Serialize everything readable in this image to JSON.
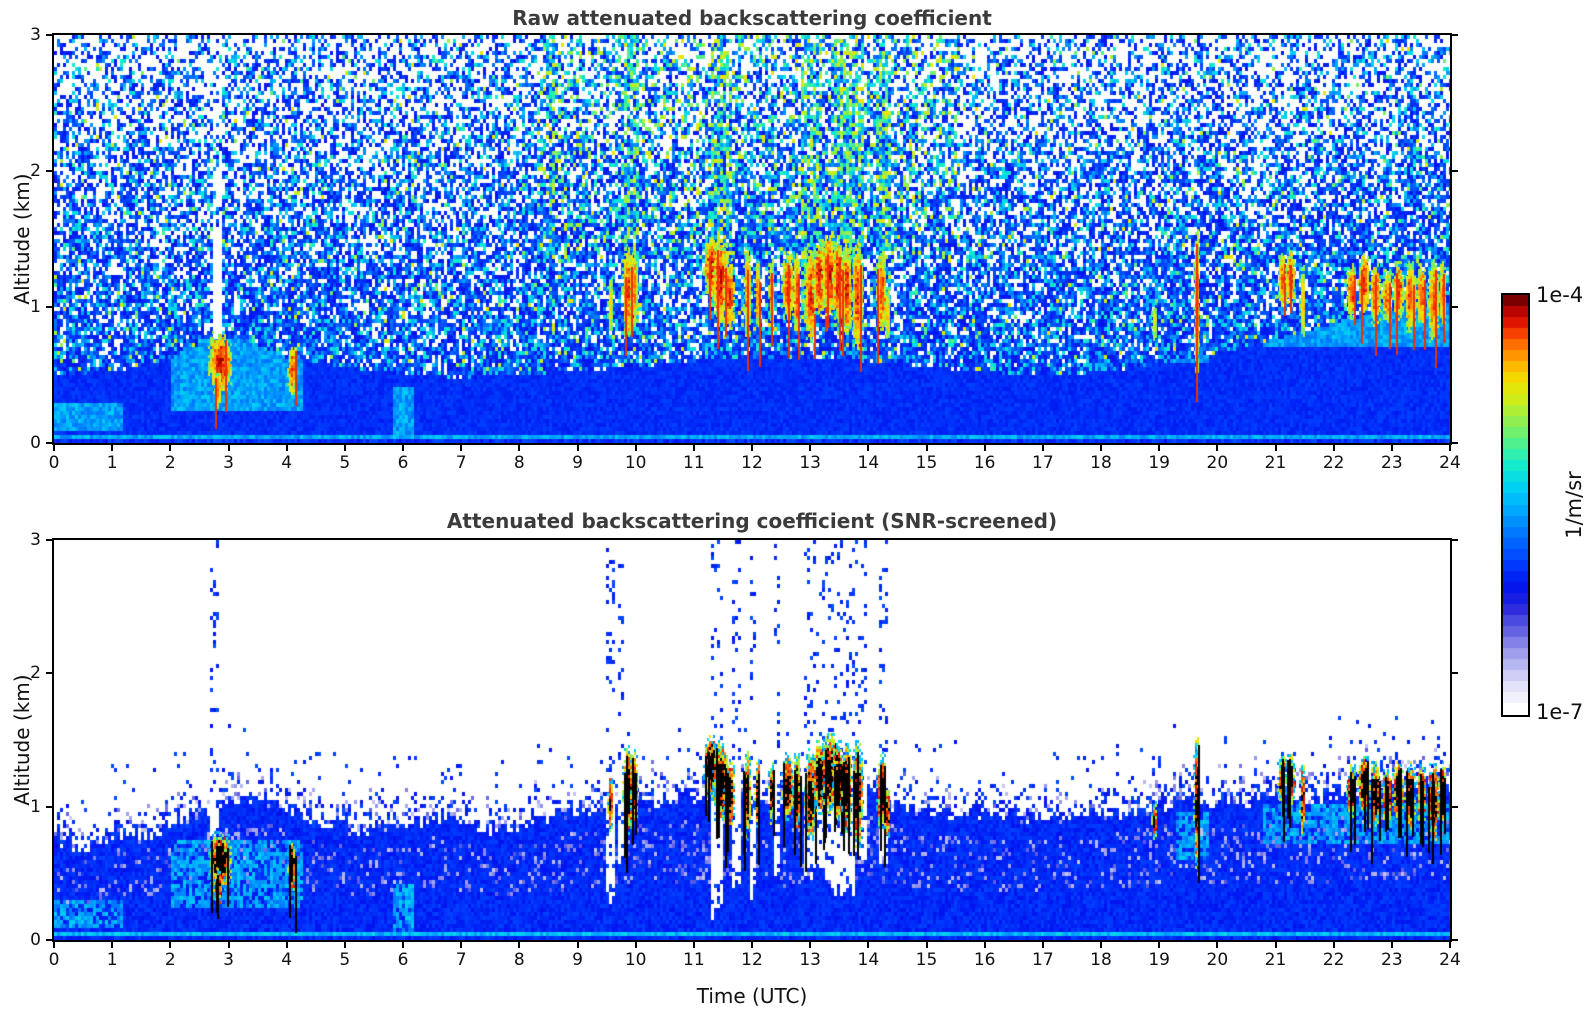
{
  "chart_data": {
    "type": "heatmap",
    "x_axis": {
      "label": "Time (UTC)",
      "range": [
        0,
        24
      ],
      "ticks": [
        0,
        1,
        2,
        3,
        4,
        5,
        6,
        7,
        8,
        9,
        10,
        11,
        12,
        13,
        14,
        15,
        16,
        17,
        18,
        19,
        20,
        21,
        22,
        23,
        24
      ]
    },
    "y_axis": {
      "label": "Altitude (km)",
      "range": [
        0,
        3
      ],
      "ticks": [
        0,
        1,
        2,
        3
      ]
    },
    "colorbar": {
      "units": "1/m/sr",
      "scale": "log",
      "min": 1e-07,
      "max": 0.0001,
      "min_label": "1e-7",
      "max_label": "1e-4",
      "stops": [
        [
          0.0,
          "#ffffff"
        ],
        [
          0.05,
          "#e6e6fa"
        ],
        [
          0.1,
          "#bdbdf2"
        ],
        [
          0.15,
          "#9090ea"
        ],
        [
          0.2,
          "#5c5ce2"
        ],
        [
          0.25,
          "#2626dc"
        ],
        [
          0.3,
          "#0013f0"
        ],
        [
          0.36,
          "#0040ff"
        ],
        [
          0.42,
          "#0070ff"
        ],
        [
          0.48,
          "#00a2ff"
        ],
        [
          0.54,
          "#00d2f2"
        ],
        [
          0.6,
          "#16eec8"
        ],
        [
          0.65,
          "#4cf08e"
        ],
        [
          0.7,
          "#8aee55"
        ],
        [
          0.75,
          "#c8ee1e"
        ],
        [
          0.8,
          "#f2e200"
        ],
        [
          0.84,
          "#ffb800"
        ],
        [
          0.88,
          "#ff8000"
        ],
        [
          0.92,
          "#f74100"
        ],
        [
          0.95,
          "#dd1100"
        ],
        [
          0.98,
          "#b00000"
        ],
        [
          1.0,
          "#7a0000"
        ]
      ]
    },
    "panels": [
      {
        "title": "Raw attenuated backscattering coefficient",
        "mode": "raw",
        "boundary_layer_top_km": [
          [
            0,
            0.5
          ],
          [
            1,
            0.52
          ],
          [
            2,
            0.62
          ],
          [
            2.6,
            0.75
          ],
          [
            3,
            0.78
          ],
          [
            3.5,
            0.72
          ],
          [
            4,
            0.63
          ],
          [
            5,
            0.56
          ],
          [
            6,
            0.5
          ],
          [
            7,
            0.48
          ],
          [
            8,
            0.5
          ],
          [
            9,
            0.53
          ],
          [
            10,
            0.56
          ],
          [
            11,
            0.6
          ],
          [
            12,
            0.63
          ],
          [
            13,
            0.62
          ],
          [
            14,
            0.6
          ],
          [
            15,
            0.56
          ],
          [
            16,
            0.52
          ],
          [
            17,
            0.5
          ],
          [
            18,
            0.52
          ],
          [
            19,
            0.58
          ],
          [
            20,
            0.66
          ],
          [
            21,
            0.76
          ],
          [
            22,
            0.88
          ],
          [
            23,
            0.98
          ],
          [
            24,
            1.02
          ]
        ],
        "white_columns": [
          [
            2.74,
            2.9,
            0.68,
            1.58
          ]
        ],
        "bright_columns": [
          [
            9.8,
            10.05
          ],
          [
            11.3,
            11.65
          ],
          [
            12.85,
            13.2
          ],
          [
            13.35,
            13.95
          ],
          [
            14.15,
            14.4
          ],
          [
            8.5,
            8.62
          ]
        ]
      },
      {
        "title": "Attenuated backscattering coefficient (SNR-screened)",
        "mode": "screened",
        "boundary_layer_top_km": [
          [
            0,
            0.72
          ],
          [
            0.5,
            0.68
          ],
          [
            1,
            0.8
          ],
          [
            1.5,
            0.78
          ],
          [
            2,
            0.84
          ],
          [
            2.5,
            0.92
          ],
          [
            3,
            1.04
          ],
          [
            3.5,
            1.05
          ],
          [
            4,
            1.0
          ],
          [
            4.5,
            0.9
          ],
          [
            5,
            0.85
          ],
          [
            5.5,
            0.8
          ],
          [
            6,
            0.86
          ],
          [
            6.5,
            0.92
          ],
          [
            7,
            0.88
          ],
          [
            7.5,
            0.82
          ],
          [
            8,
            0.86
          ],
          [
            8.5,
            0.9
          ],
          [
            9,
            0.96
          ],
          [
            9.5,
            1.0
          ],
          [
            10,
            1.03
          ],
          [
            10.5,
            1.0
          ],
          [
            11,
            1.06
          ],
          [
            11.5,
            1.1
          ],
          [
            12,
            1.05
          ],
          [
            12.5,
            1.0
          ],
          [
            13,
            1.05
          ],
          [
            13.5,
            1.1
          ],
          [
            14,
            1.1
          ],
          [
            14.5,
            1.0
          ],
          [
            15,
            0.95
          ],
          [
            16,
            0.9
          ],
          [
            17,
            0.9
          ],
          [
            18,
            0.92
          ],
          [
            19,
            1.0
          ],
          [
            19.5,
            1.06
          ],
          [
            20,
            1.0
          ],
          [
            21,
            1.08
          ],
          [
            21.5,
            1.04
          ],
          [
            22,
            1.1
          ],
          [
            22.5,
            1.14
          ],
          [
            23,
            1.15
          ],
          [
            24,
            1.16
          ]
        ],
        "screened_gaps": [
          [
            9.5,
            9.64,
            0.25
          ],
          [
            9.72,
            9.8,
            0.5
          ],
          [
            11.32,
            11.52,
            0.15
          ],
          [
            11.68,
            11.8,
            0.35
          ],
          [
            11.95,
            12.06,
            0.3
          ],
          [
            12.38,
            12.5,
            0.45
          ],
          [
            12.88,
            13.35,
            0.45
          ],
          [
            13.35,
            13.78,
            0.3
          ],
          [
            13.78,
            13.98,
            0.55
          ],
          [
            14.16,
            14.34,
            0.5
          ],
          [
            2.7,
            2.82,
            0.78
          ]
        ]
      }
    ],
    "clouds": [
      [
        2.85,
        0.6,
        0.2,
        0.22,
        1
      ],
      [
        2.8,
        0.4,
        0.07,
        0.14,
        0.8
      ],
      [
        4.08,
        0.55,
        0.07,
        0.2,
        0.9
      ],
      [
        9.55,
        1.02,
        0.05,
        0.22,
        0.65
      ],
      [
        9.85,
        1.12,
        0.08,
        0.34,
        0.95
      ],
      [
        9.97,
        1.15,
        0.06,
        0.28,
        0.85
      ],
      [
        11.3,
        1.3,
        0.14,
        0.24,
        1
      ],
      [
        11.45,
        1.2,
        0.13,
        0.3,
        1
      ],
      [
        11.6,
        1.1,
        0.09,
        0.26,
        0.95
      ],
      [
        11.9,
        1.1,
        0.06,
        0.34,
        0.9
      ],
      [
        12.08,
        1.1,
        0.05,
        0.26,
        0.85
      ],
      [
        12.33,
        1.12,
        0.05,
        0.24,
        0.85
      ],
      [
        12.6,
        1.15,
        0.1,
        0.26,
        0.95
      ],
      [
        12.76,
        1.1,
        0.07,
        0.3,
        0.9
      ],
      [
        13.0,
        1.1,
        0.1,
        0.34,
        0.95
      ],
      [
        13.16,
        1.22,
        0.12,
        0.28,
        1
      ],
      [
        13.32,
        1.25,
        0.13,
        0.3,
        1
      ],
      [
        13.47,
        1.2,
        0.1,
        0.3,
        1
      ],
      [
        13.62,
        1.14,
        0.09,
        0.34,
        0.95
      ],
      [
        13.8,
        1.1,
        0.09,
        0.4,
        0.95
      ],
      [
        14.22,
        1.12,
        0.08,
        0.3,
        0.9
      ],
      [
        14.32,
        0.95,
        0.05,
        0.2,
        0.7
      ],
      [
        18.9,
        0.9,
        0.04,
        0.14,
        0.6
      ],
      [
        19.64,
        1.05,
        0.05,
        0.52,
        0.9
      ],
      [
        21.1,
        1.2,
        0.08,
        0.2,
        0.9
      ],
      [
        21.24,
        1.22,
        0.08,
        0.2,
        0.95
      ],
      [
        21.46,
        1.05,
        0.05,
        0.26,
        0.7
      ],
      [
        22.3,
        1.12,
        0.09,
        0.2,
        0.9
      ],
      [
        22.5,
        1.18,
        0.1,
        0.22,
        0.95
      ],
      [
        22.7,
        1.1,
        0.09,
        0.24,
        0.9
      ],
      [
        22.9,
        1.08,
        0.08,
        0.2,
        0.85
      ],
      [
        23.1,
        1.12,
        0.1,
        0.22,
        0.95
      ],
      [
        23.3,
        1.08,
        0.09,
        0.26,
        0.9
      ],
      [
        23.5,
        1.1,
        0.09,
        0.22,
        0.9
      ],
      [
        23.7,
        1.05,
        0.09,
        0.3,
        0.9
      ],
      [
        23.86,
        1.1,
        0.07,
        0.24,
        0.85
      ]
    ],
    "cyan_plumes": [
      [
        2.0,
        4.3,
        0.25,
        0.75
      ],
      [
        5.85,
        6.2,
        0.0,
        0.42
      ],
      [
        20.8,
        24,
        0.72,
        1.02
      ],
      [
        19.3,
        19.85,
        0.6,
        0.95
      ],
      [
        0.0,
        1.2,
        0.08,
        0.3
      ]
    ]
  }
}
